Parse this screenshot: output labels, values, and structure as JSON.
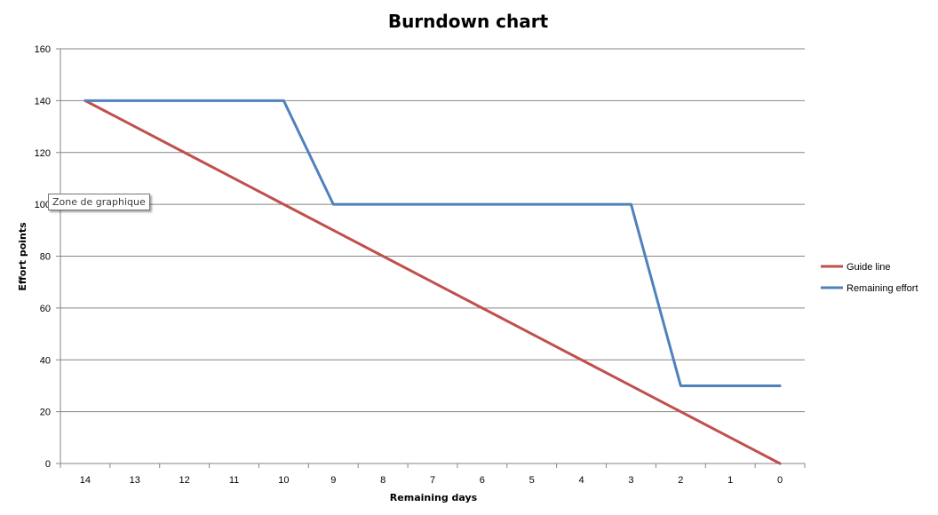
{
  "chart_data": {
    "type": "line",
    "title": "Burndown chart",
    "xlabel": "Remaining days",
    "ylabel": "Effort points",
    "categories": [
      "14",
      "13",
      "12",
      "11",
      "10",
      "9",
      "8",
      "7",
      "6",
      "5",
      "4",
      "3",
      "2",
      "1",
      "0"
    ],
    "ylim": [
      0,
      160
    ],
    "yticks": [
      0,
      20,
      40,
      60,
      80,
      100,
      120,
      140,
      160
    ],
    "grid": true,
    "legend_position": "right",
    "series": [
      {
        "name": "Guide line",
        "color": "#C0504D",
        "values": [
          140,
          130,
          120,
          110,
          100,
          90,
          80,
          70,
          60,
          50,
          40,
          30,
          20,
          10,
          0
        ]
      },
      {
        "name": "Remaining effort",
        "color": "#4F81BD",
        "values": [
          140,
          140,
          140,
          140,
          140,
          100,
          100,
          100,
          100,
          100,
          100,
          100,
          30,
          30,
          30
        ]
      }
    ]
  },
  "tooltip": {
    "text": "Zone de graphique"
  }
}
